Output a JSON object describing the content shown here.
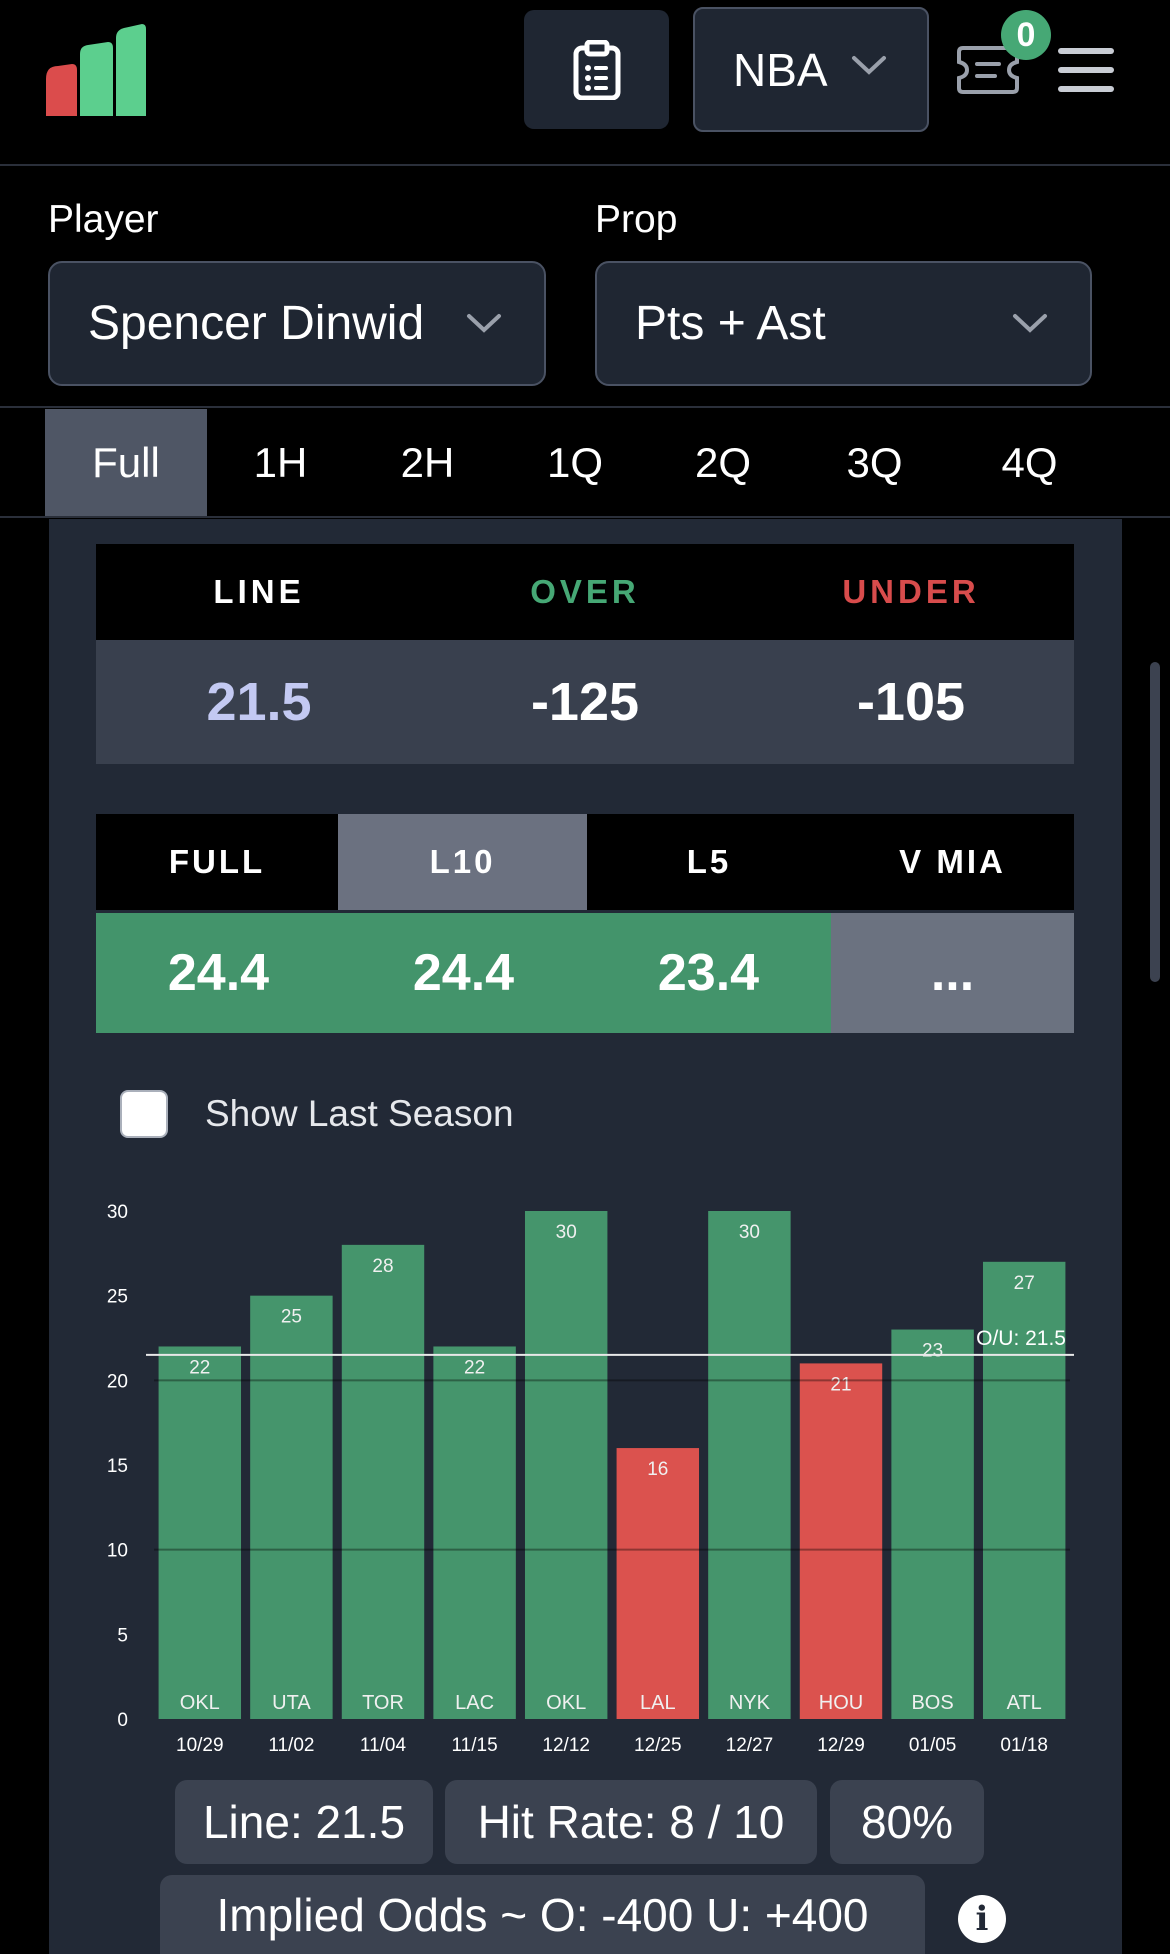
{
  "header": {
    "league": "NBA",
    "ticket_count": "0",
    "icons": [
      "logo-bars-icon",
      "clipboard-icon",
      "chevron-down-icon",
      "ticket-icon",
      "hamburger-menu-icon"
    ]
  },
  "selectors": {
    "player_label": "Player",
    "player_value": "Spencer Dinwid",
    "prop_label": "Prop",
    "prop_value": "Pts + Ast"
  },
  "period_tabs": [
    "Full",
    "1H",
    "2H",
    "1Q",
    "2Q",
    "3Q",
    "4Q"
  ],
  "active_tab": "Full",
  "odds": {
    "line_label": "LINE",
    "over_label": "OVER",
    "under_label": "UNDER",
    "line": "21.5",
    "over": "-125",
    "under": "-105"
  },
  "averages": {
    "headers": [
      "FULL",
      "L10",
      "L5",
      "V MIA"
    ],
    "values": [
      "24.4",
      "24.4",
      "23.4",
      "..."
    ],
    "active_header": "L10"
  },
  "show_last_season": {
    "label": "Show Last Season",
    "checked": false
  },
  "chart_data": {
    "type": "bar",
    "categories": [
      "10/29",
      "11/02",
      "11/04",
      "11/15",
      "12/12",
      "12/25",
      "12/27",
      "12/29",
      "01/05",
      "01/18"
    ],
    "opponents": [
      "OKL",
      "UTA",
      "TOR",
      "LAC",
      "OKL",
      "LAL",
      "NYK",
      "HOU",
      "BOS",
      "ATL"
    ],
    "values": [
      22,
      25,
      28,
      22,
      30,
      16,
      30,
      21,
      23,
      27
    ],
    "ylim": [
      0,
      30
    ],
    "yticks": [
      0,
      5,
      10,
      15,
      20,
      25,
      30
    ],
    "line_value": 21.5,
    "line_label": "O/U: 21.5",
    "colors": {
      "over": "#45956c",
      "under": "#db524e",
      "line": "#e8e8e8"
    }
  },
  "summary": {
    "line": "Line: 21.5",
    "hit_rate": "Hit Rate: 8 / 10",
    "percent": "80%",
    "implied_odds": "Implied Odds ~ O: -400 U: +400",
    "info_icon": "i"
  },
  "colors": {
    "green": "#46a875",
    "red": "#d84c4c",
    "line_value": "#c3c9f2",
    "avg_green": "#43946b",
    "avg_grey": "#6b7280"
  }
}
